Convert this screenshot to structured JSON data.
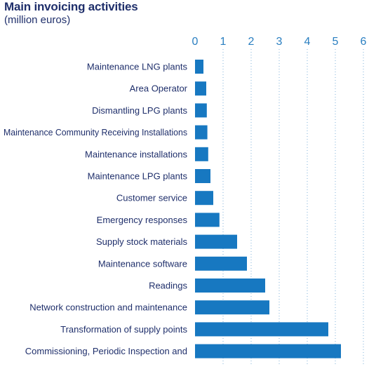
{
  "header": {
    "title": "Main invoicing activities",
    "subtitle": "(million euros)"
  },
  "colors": {
    "bar": "#1778c1",
    "text": "#1f2f6b",
    "tick": "#2a7fc1"
  },
  "chart_data": {
    "type": "bar",
    "orientation": "horizontal",
    "title": "Main invoicing activities",
    "subtitle": "(million euros)",
    "xlim": [
      0,
      6
    ],
    "xticks": [
      0,
      1,
      2,
      3,
      4,
      5,
      6
    ],
    "grid": "vertical dotted",
    "axis_position": "top",
    "categories": [
      "Maintenance LNG plants",
      "Area Operator",
      "Dismantling LPG plants",
      "Maintenance Community Receiving Installations",
      "Maintenance installations",
      "Maintenance LPG plants",
      "Customer service",
      "Emergency responses",
      "Supply stock materials",
      "Maintenance software",
      "Readings",
      "Network construction and maintenance",
      "Transformation of supply points",
      "Commissioning, Periodic Inspection and"
    ],
    "values": [
      0.3,
      0.4,
      0.42,
      0.44,
      0.47,
      0.55,
      0.65,
      0.87,
      1.5,
      1.85,
      2.5,
      2.65,
      4.75,
      5.2
    ]
  }
}
